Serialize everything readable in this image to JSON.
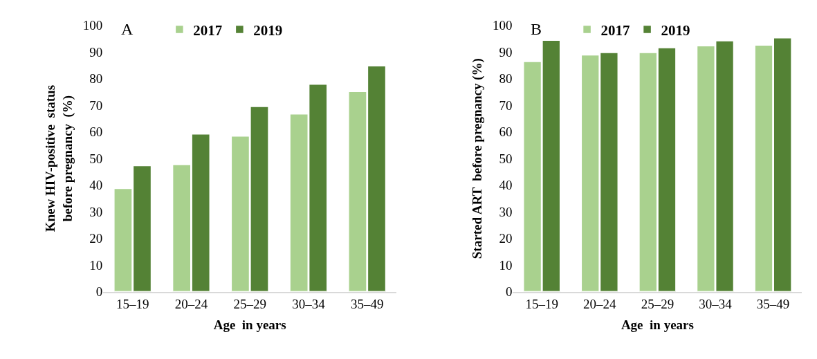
{
  "chart_data": [
    {
      "type": "bar",
      "title": "A",
      "xlabel": "Age  in years",
      "ylabel": "Knew HIV-positive  status before pregnancy  (%)",
      "categories": [
        "15–19",
        "20–24",
        "25–29",
        "30–34",
        "35–49"
      ],
      "series": [
        {
          "name": "2017",
          "color": "#a9d18e",
          "values": [
            38.7,
            47.7,
            58.4,
            66.7,
            75.2
          ]
        },
        {
          "name": "2019",
          "color": "#548235",
          "values": [
            47.3,
            59.2,
            69.5,
            77.9,
            84.8
          ]
        }
      ],
      "ylim": [
        0,
        100
      ],
      "yticks": [
        0,
        10,
        20,
        30,
        40,
        50,
        60,
        70,
        80,
        90,
        100
      ],
      "legend": "top"
    },
    {
      "type": "bar",
      "title": "B",
      "xlabel": "Age  in years",
      "ylabel": "Started ART  before pregnancy (%)",
      "categories": [
        "15–19",
        "20–24",
        "25–29",
        "30–34",
        "35–49"
      ],
      "series": [
        {
          "name": "2017",
          "color": "#a9d18e",
          "values": [
            86.4,
            88.9,
            89.8,
            92.3,
            92.6
          ]
        },
        {
          "name": "2019",
          "color": "#548235",
          "values": [
            94.4,
            89.8,
            91.6,
            94.2,
            95.3
          ]
        }
      ],
      "ylim": [
        0,
        100
      ],
      "yticks": [
        0,
        10,
        20,
        30,
        40,
        50,
        60,
        70,
        80,
        90,
        100
      ],
      "legend": "top"
    }
  ]
}
